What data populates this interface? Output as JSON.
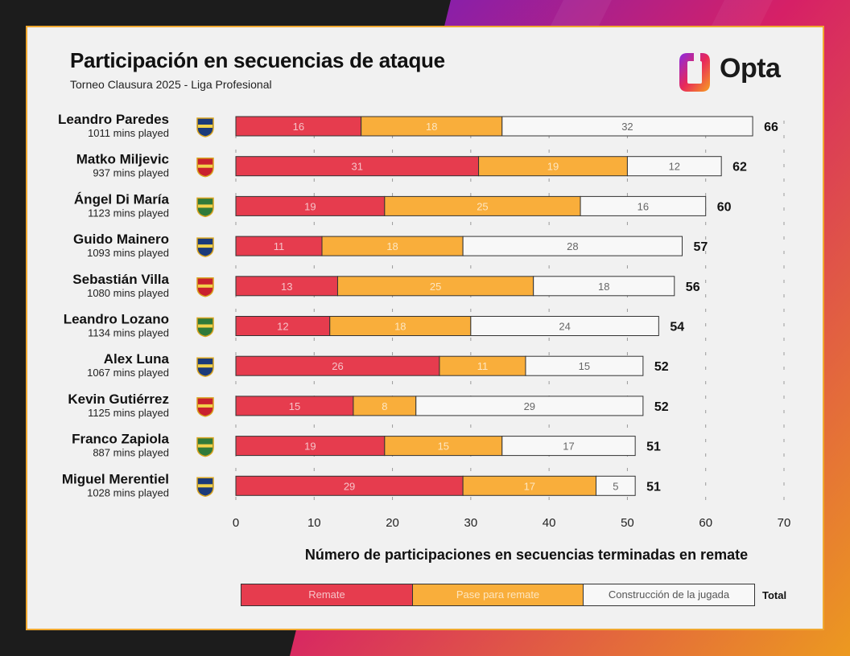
{
  "header": {
    "title": "Participación en secuencias de ataque",
    "subtitle": "Torneo Clausura 2025 - Liga Profesional",
    "brand": "Opta"
  },
  "colors": {
    "remate": "#e63c4e",
    "pase": "#f9ae3b",
    "construccion": "#f8f8f8",
    "accent": "#f0a830"
  },
  "chart_data": {
    "type": "bar",
    "orientation": "horizontal",
    "stacked": true,
    "title": "Participación en secuencias de ataque",
    "subtitle": "Torneo Clausura 2025 - Liga Profesional",
    "xlabel": "Número de participaciones en secuencias terminadas en remate",
    "ylabel": "",
    "xlim": [
      0,
      70
    ],
    "xticks": [
      0,
      10,
      20,
      30,
      40,
      50,
      60,
      70
    ],
    "categories": [
      {
        "name": "Leandro Paredes",
        "mins": "1011 mins played",
        "badge": "boca-juniors-badge-icon",
        "total": 66
      },
      {
        "name": "Matko Miljevic",
        "mins": "937 mins played",
        "badge": "huracan-badge-icon",
        "total": 62
      },
      {
        "name": "Ángel Di María",
        "mins": "1123 mins played",
        "badge": "rosario-central-badge-icon",
        "total": 60
      },
      {
        "name": "Guido Mainero",
        "mins": "1093 mins played",
        "badge": "platense-badge-icon",
        "total": 57
      },
      {
        "name": "Sebastián Villa",
        "mins": "1080 mins played",
        "badge": "independiente-rivadavia-badge-icon",
        "total": 56
      },
      {
        "name": "Leandro Lozano",
        "mins": "1134 mins played",
        "badge": "argentinos-juniors-badge-icon",
        "total": 54
      },
      {
        "name": "Alex Luna",
        "mins": "1067 mins played",
        "badge": "instituto-badge-icon",
        "total": 52
      },
      {
        "name": "Kevin Gutiérrez",
        "mins": "1125 mins played",
        "badge": "defensa-y-justicia-badge-icon",
        "total": 52
      },
      {
        "name": "Franco Zapiola",
        "mins": "887 mins played",
        "badge": "platense-badge-icon",
        "total": 51
      },
      {
        "name": "Miguel Merentiel",
        "mins": "1028 mins played",
        "badge": "boca-juniors-badge-icon",
        "total": 51
      }
    ],
    "series": [
      {
        "name": "Remate",
        "values": [
          16,
          31,
          19,
          11,
          13,
          12,
          26,
          15,
          19,
          29
        ]
      },
      {
        "name": "Pase para remate",
        "values": [
          18,
          19,
          25,
          18,
          25,
          18,
          11,
          8,
          15,
          17
        ]
      },
      {
        "name": "Construcción de la jugada",
        "values": [
          32,
          12,
          16,
          28,
          18,
          24,
          15,
          29,
          17,
          5
        ]
      }
    ],
    "legend": {
      "items": [
        "Remate",
        "Pase para remate",
        "Construcción de la jugada"
      ],
      "total_label": "Total",
      "position": "bottom"
    }
  }
}
